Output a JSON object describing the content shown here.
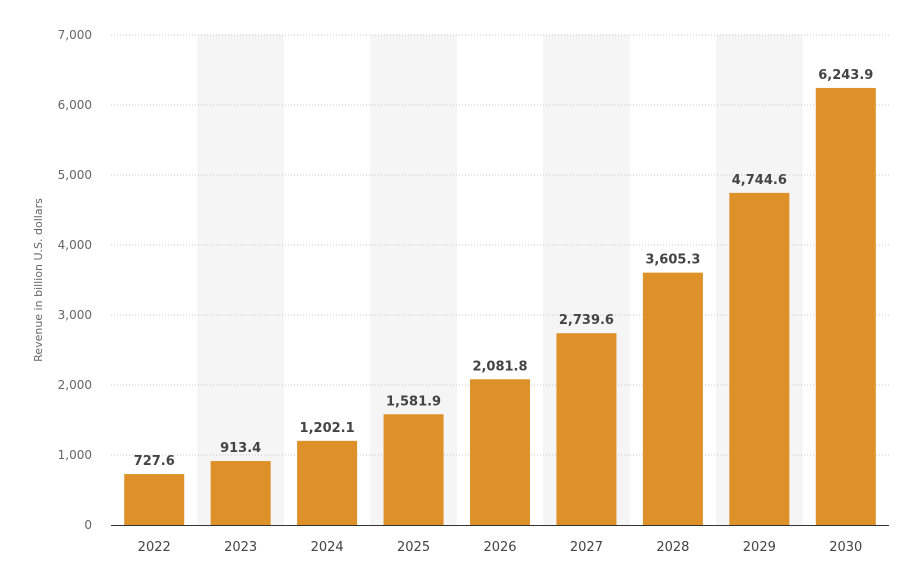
{
  "chart_data": {
    "type": "bar",
    "title": "",
    "xlabel": "",
    "ylabel": "Revenue in billion U.S. dollars",
    "categories": [
      "2022",
      "2023",
      "2024",
      "2025",
      "2026",
      "2027",
      "2028",
      "2029",
      "2030"
    ],
    "values": [
      727.6,
      913.4,
      1202.1,
      1581.9,
      2081.8,
      2739.6,
      3605.3,
      4744.6,
      6243.9
    ],
    "value_labels": [
      "727.6",
      "913.4",
      "1,202.1",
      "1,581.9",
      "2,081.8",
      "2,739.6",
      "3,605.3",
      "4,744.6",
      "6,243.9"
    ],
    "ylim": [
      0,
      7000
    ],
    "yticks": [
      0,
      1000,
      2000,
      3000,
      4000,
      5000,
      6000,
      7000
    ],
    "ytick_labels": [
      "0",
      "1,000",
      "2,000",
      "3,000",
      "4,000",
      "5,000",
      "6,000",
      "7,000"
    ],
    "grid": true,
    "legend": "none",
    "colors": {
      "bar": "#dd9128",
      "band": "#f5f5f5",
      "grid": "#c8c8c8",
      "axis": "#333333"
    }
  }
}
